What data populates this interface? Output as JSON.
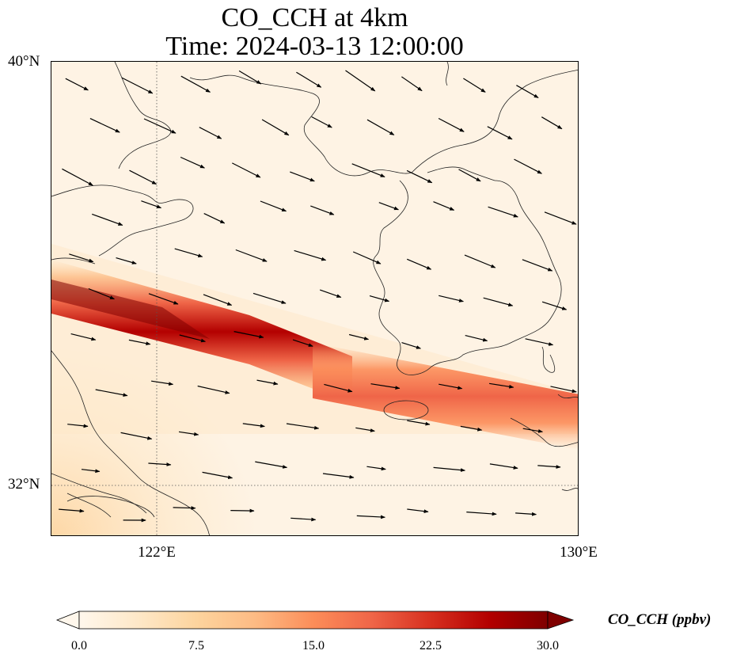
{
  "title": {
    "line1": "CO_CCH at 4km",
    "line2": "Time: 2024-03-13 12:00:00"
  },
  "map": {
    "lat_ticks": [
      "40°N",
      "32°N"
    ],
    "lon_ticks": [
      "122°E",
      "130°E"
    ],
    "extent": {
      "lon_min": 120,
      "lon_max": 130,
      "lat_min": 31,
      "lat_max": 40
    },
    "gridlines": "dotted",
    "field": "CO_CCH",
    "plume_band": {
      "description": "high CO band oriented WNW-ESE",
      "start": {
        "lon": 120,
        "lat": 35.2
      },
      "end": {
        "lon": 130,
        "lat": 32.7
      },
      "peak_ppbv": 30
    }
  },
  "colorbar": {
    "label": "CO_CCH (ppbv)",
    "ticks": [
      "0.0",
      "7.5",
      "15.0",
      "22.5",
      "30.0"
    ],
    "min": 0,
    "max": 30,
    "extend": "both",
    "colormap": "OrRd",
    "colors": [
      "#fff7ec",
      "#fee8c8",
      "#fdd49e",
      "#fdbb84",
      "#fc8d59",
      "#ef6548",
      "#d7301f",
      "#b30000",
      "#7f0000"
    ]
  }
}
